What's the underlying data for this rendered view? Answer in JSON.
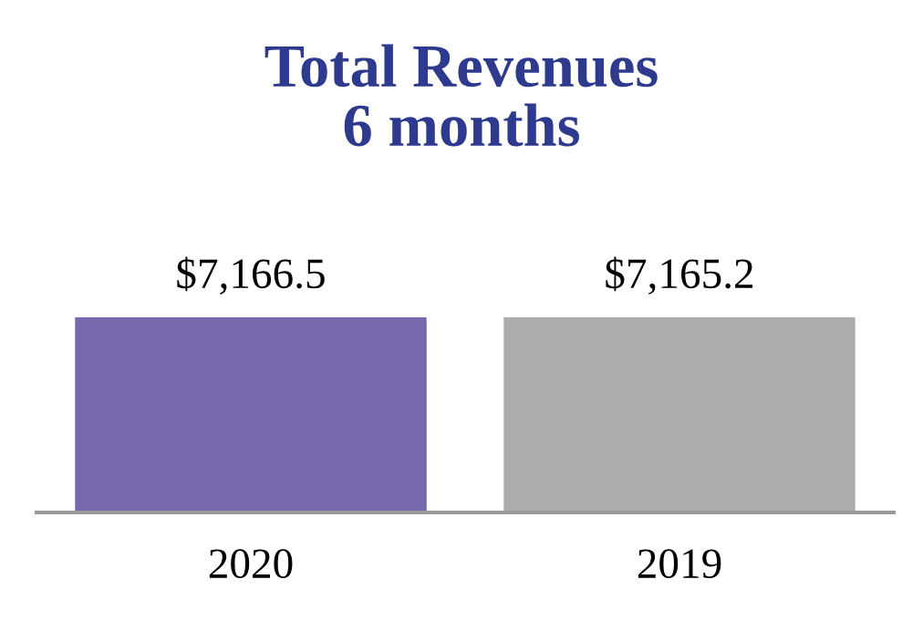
{
  "chart_data": {
    "type": "bar",
    "title": "Total Revenues\n6 months",
    "categories": [
      "2020",
      "2019"
    ],
    "values": [
      7166.5,
      7165.2
    ],
    "colors": [
      "#7a68ae",
      "#acacac"
    ],
    "value_labels": [
      "$7,166.5",
      "$7,165.2"
    ],
    "grid": false,
    "legend": false
  }
}
